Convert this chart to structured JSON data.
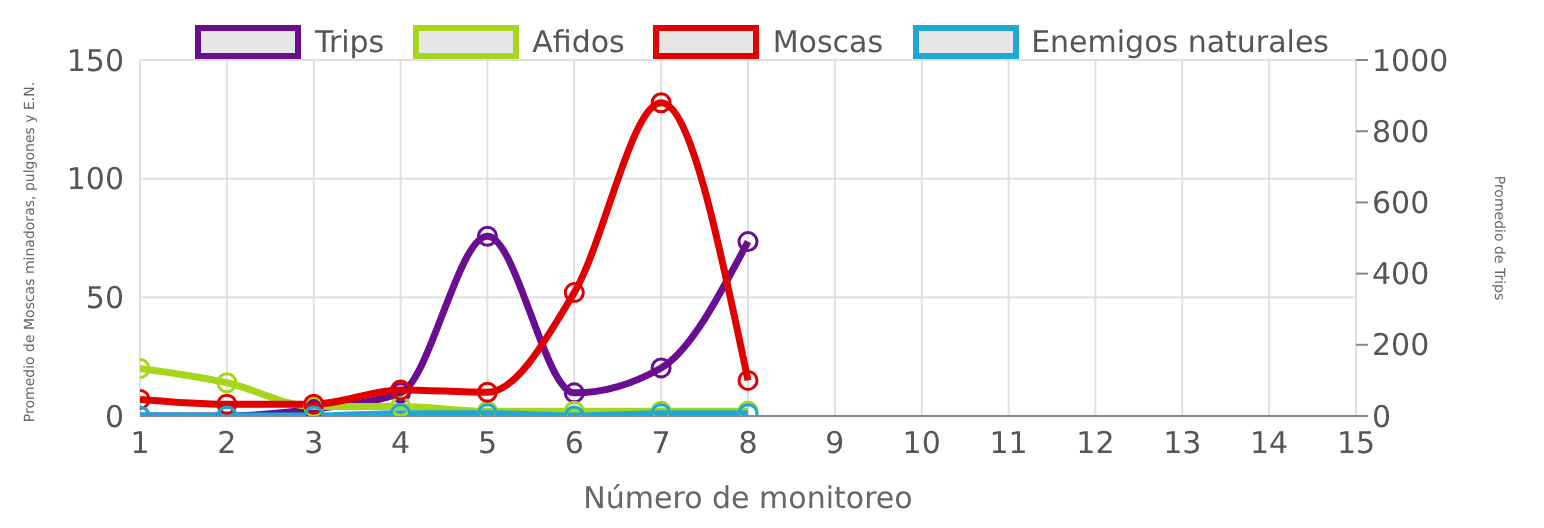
{
  "chart_data": {
    "type": "line",
    "xlabel": "Número de monitoreo",
    "ylabel": "Promedio de Moscas minadoras, pulgones y E.N.",
    "y2label": "Promedio de Trips",
    "x": [
      1,
      2,
      3,
      4,
      5,
      6,
      7,
      8
    ],
    "xlim": [
      1,
      15
    ],
    "xticks": [
      1,
      2,
      3,
      4,
      5,
      6,
      7,
      8,
      9,
      10,
      11,
      12,
      13,
      14,
      15
    ],
    "ylim": [
      0,
      150
    ],
    "yticks": [
      0,
      50,
      100,
      150
    ],
    "y2lim": [
      0,
      1000
    ],
    "y2ticks": [
      0,
      200,
      400,
      600,
      800,
      1000
    ],
    "grid": true,
    "legend": "top",
    "marker": "circle",
    "series": [
      {
        "name": "Trips",
        "color": "#6a0d91",
        "axis": "y2",
        "values": [
          0,
          0,
          20,
          65,
          505,
          65,
          135,
          490
        ]
      },
      {
        "name": "Afidos",
        "color": "#a6d61c",
        "values": [
          20,
          14,
          4,
          4,
          2,
          2,
          2,
          2
        ]
      },
      {
        "name": "Moscas",
        "color": "#e00000",
        "values": [
          7,
          5,
          5,
          11,
          10,
          52,
          132,
          15
        ]
      },
      {
        "name": "Enemigos naturales",
        "color": "#1ea8d8",
        "values": [
          0,
          0,
          0,
          1,
          1,
          0,
          1,
          1
        ]
      }
    ]
  }
}
